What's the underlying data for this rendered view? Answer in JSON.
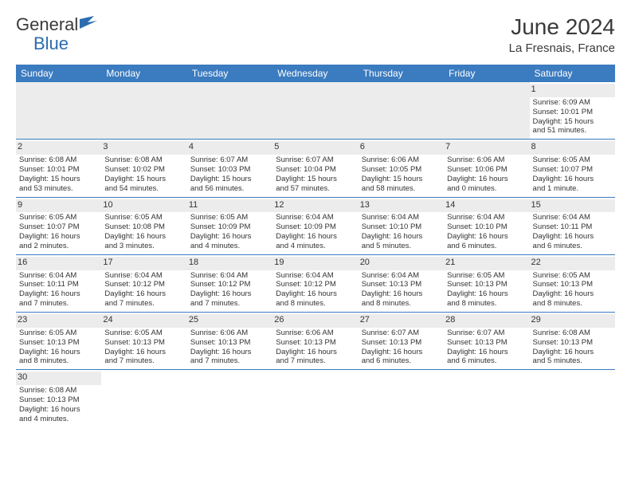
{
  "logo": {
    "text_part1": "General",
    "text_part2": "Blue"
  },
  "header": {
    "month_title": "June 2024",
    "location": "La Fresnais, France"
  },
  "colors": {
    "header_bg": "#3b7bbf",
    "header_text": "#ffffff",
    "daynum_bg": "#ececec",
    "border": "#3b7bbf"
  },
  "day_names": [
    "Sunday",
    "Monday",
    "Tuesday",
    "Wednesday",
    "Thursday",
    "Friday",
    "Saturday"
  ],
  "weeks": [
    [
      {
        "empty": true
      },
      {
        "empty": true
      },
      {
        "empty": true
      },
      {
        "empty": true
      },
      {
        "empty": true
      },
      {
        "empty": true
      },
      {
        "day": "1",
        "sunrise": "Sunrise: 6:09 AM",
        "sunset": "Sunset: 10:01 PM",
        "daylight1": "Daylight: 15 hours",
        "daylight2": "and 51 minutes."
      }
    ],
    [
      {
        "day": "2",
        "sunrise": "Sunrise: 6:08 AM",
        "sunset": "Sunset: 10:01 PM",
        "daylight1": "Daylight: 15 hours",
        "daylight2": "and 53 minutes."
      },
      {
        "day": "3",
        "sunrise": "Sunrise: 6:08 AM",
        "sunset": "Sunset: 10:02 PM",
        "daylight1": "Daylight: 15 hours",
        "daylight2": "and 54 minutes."
      },
      {
        "day": "4",
        "sunrise": "Sunrise: 6:07 AM",
        "sunset": "Sunset: 10:03 PM",
        "daylight1": "Daylight: 15 hours",
        "daylight2": "and 56 minutes."
      },
      {
        "day": "5",
        "sunrise": "Sunrise: 6:07 AM",
        "sunset": "Sunset: 10:04 PM",
        "daylight1": "Daylight: 15 hours",
        "daylight2": "and 57 minutes."
      },
      {
        "day": "6",
        "sunrise": "Sunrise: 6:06 AM",
        "sunset": "Sunset: 10:05 PM",
        "daylight1": "Daylight: 15 hours",
        "daylight2": "and 58 minutes."
      },
      {
        "day": "7",
        "sunrise": "Sunrise: 6:06 AM",
        "sunset": "Sunset: 10:06 PM",
        "daylight1": "Daylight: 16 hours",
        "daylight2": "and 0 minutes."
      },
      {
        "day": "8",
        "sunrise": "Sunrise: 6:05 AM",
        "sunset": "Sunset: 10:07 PM",
        "daylight1": "Daylight: 16 hours",
        "daylight2": "and 1 minute."
      }
    ],
    [
      {
        "day": "9",
        "sunrise": "Sunrise: 6:05 AM",
        "sunset": "Sunset: 10:07 PM",
        "daylight1": "Daylight: 16 hours",
        "daylight2": "and 2 minutes."
      },
      {
        "day": "10",
        "sunrise": "Sunrise: 6:05 AM",
        "sunset": "Sunset: 10:08 PM",
        "daylight1": "Daylight: 16 hours",
        "daylight2": "and 3 minutes."
      },
      {
        "day": "11",
        "sunrise": "Sunrise: 6:05 AM",
        "sunset": "Sunset: 10:09 PM",
        "daylight1": "Daylight: 16 hours",
        "daylight2": "and 4 minutes."
      },
      {
        "day": "12",
        "sunrise": "Sunrise: 6:04 AM",
        "sunset": "Sunset: 10:09 PM",
        "daylight1": "Daylight: 16 hours",
        "daylight2": "and 4 minutes."
      },
      {
        "day": "13",
        "sunrise": "Sunrise: 6:04 AM",
        "sunset": "Sunset: 10:10 PM",
        "daylight1": "Daylight: 16 hours",
        "daylight2": "and 5 minutes."
      },
      {
        "day": "14",
        "sunrise": "Sunrise: 6:04 AM",
        "sunset": "Sunset: 10:10 PM",
        "daylight1": "Daylight: 16 hours",
        "daylight2": "and 6 minutes."
      },
      {
        "day": "15",
        "sunrise": "Sunrise: 6:04 AM",
        "sunset": "Sunset: 10:11 PM",
        "daylight1": "Daylight: 16 hours",
        "daylight2": "and 6 minutes."
      }
    ],
    [
      {
        "day": "16",
        "sunrise": "Sunrise: 6:04 AM",
        "sunset": "Sunset: 10:11 PM",
        "daylight1": "Daylight: 16 hours",
        "daylight2": "and 7 minutes."
      },
      {
        "day": "17",
        "sunrise": "Sunrise: 6:04 AM",
        "sunset": "Sunset: 10:12 PM",
        "daylight1": "Daylight: 16 hours",
        "daylight2": "and 7 minutes."
      },
      {
        "day": "18",
        "sunrise": "Sunrise: 6:04 AM",
        "sunset": "Sunset: 10:12 PM",
        "daylight1": "Daylight: 16 hours",
        "daylight2": "and 7 minutes."
      },
      {
        "day": "19",
        "sunrise": "Sunrise: 6:04 AM",
        "sunset": "Sunset: 10:12 PM",
        "daylight1": "Daylight: 16 hours",
        "daylight2": "and 8 minutes."
      },
      {
        "day": "20",
        "sunrise": "Sunrise: 6:04 AM",
        "sunset": "Sunset: 10:13 PM",
        "daylight1": "Daylight: 16 hours",
        "daylight2": "and 8 minutes."
      },
      {
        "day": "21",
        "sunrise": "Sunrise: 6:05 AM",
        "sunset": "Sunset: 10:13 PM",
        "daylight1": "Daylight: 16 hours",
        "daylight2": "and 8 minutes."
      },
      {
        "day": "22",
        "sunrise": "Sunrise: 6:05 AM",
        "sunset": "Sunset: 10:13 PM",
        "daylight1": "Daylight: 16 hours",
        "daylight2": "and 8 minutes."
      }
    ],
    [
      {
        "day": "23",
        "sunrise": "Sunrise: 6:05 AM",
        "sunset": "Sunset: 10:13 PM",
        "daylight1": "Daylight: 16 hours",
        "daylight2": "and 8 minutes."
      },
      {
        "day": "24",
        "sunrise": "Sunrise: 6:05 AM",
        "sunset": "Sunset: 10:13 PM",
        "daylight1": "Daylight: 16 hours",
        "daylight2": "and 7 minutes."
      },
      {
        "day": "25",
        "sunrise": "Sunrise: 6:06 AM",
        "sunset": "Sunset: 10:13 PM",
        "daylight1": "Daylight: 16 hours",
        "daylight2": "and 7 minutes."
      },
      {
        "day": "26",
        "sunrise": "Sunrise: 6:06 AM",
        "sunset": "Sunset: 10:13 PM",
        "daylight1": "Daylight: 16 hours",
        "daylight2": "and 7 minutes."
      },
      {
        "day": "27",
        "sunrise": "Sunrise: 6:07 AM",
        "sunset": "Sunset: 10:13 PM",
        "daylight1": "Daylight: 16 hours",
        "daylight2": "and 6 minutes."
      },
      {
        "day": "28",
        "sunrise": "Sunrise: 6:07 AM",
        "sunset": "Sunset: 10:13 PM",
        "daylight1": "Daylight: 16 hours",
        "daylight2": "and 6 minutes."
      },
      {
        "day": "29",
        "sunrise": "Sunrise: 6:08 AM",
        "sunset": "Sunset: 10:13 PM",
        "daylight1": "Daylight: 16 hours",
        "daylight2": "and 5 minutes."
      }
    ],
    [
      {
        "day": "30",
        "sunrise": "Sunrise: 6:08 AM",
        "sunset": "Sunset: 10:13 PM",
        "daylight1": "Daylight: 16 hours",
        "daylight2": "and 4 minutes."
      },
      {
        "blank": true
      },
      {
        "blank": true
      },
      {
        "blank": true
      },
      {
        "blank": true
      },
      {
        "blank": true
      },
      {
        "blank": true
      }
    ]
  ]
}
